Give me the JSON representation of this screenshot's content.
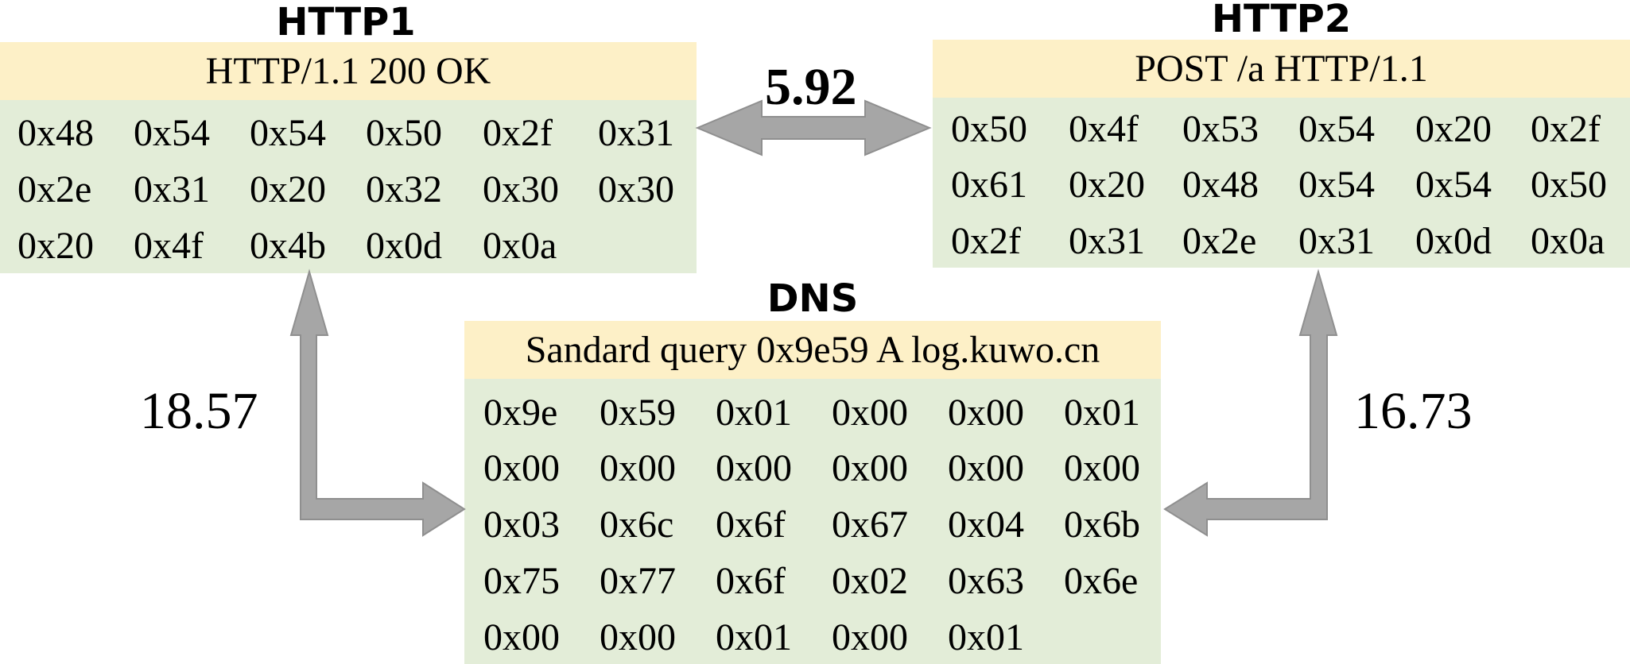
{
  "http1": {
    "title": "HTTP1",
    "header": "HTTP/1.1 200 OK",
    "bytes": [
      "0x48",
      "0x54",
      "0x54",
      "0x50",
      "0x2f",
      "0x31",
      "0x2e",
      "0x31",
      "0x20",
      "0x32",
      "0x30",
      "0x30",
      "0x20",
      "0x4f",
      "0x4b",
      "0x0d",
      "0x0a"
    ]
  },
  "http2": {
    "title": "HTTP2",
    "header": "POST /a HTTP/1.1",
    "bytes": [
      "0x50",
      "0x4f",
      "0x53",
      "0x54",
      "0x20",
      "0x2f",
      "0x61",
      "0x20",
      "0x48",
      "0x54",
      "0x54",
      "0x50",
      "0x2f",
      "0x31",
      "0x2e",
      "0x31",
      "0x0d",
      "0x0a"
    ]
  },
  "dns": {
    "title": "DNS",
    "header": "Sandard query 0x9e59 A log.kuwo.cn",
    "bytes": [
      "0x9e",
      "0x59",
      "0x01",
      "0x00",
      "0x00",
      "0x01",
      "0x00",
      "0x00",
      "0x00",
      "0x00",
      "0x00",
      "0x00",
      "0x03",
      "0x6c",
      "0x6f",
      "0x67",
      "0x04",
      "0x6b",
      "0x75",
      "0x77",
      "0x6f",
      "0x02",
      "0x63",
      "0x6e",
      "0x00",
      "0x00",
      "0x01",
      "0x00",
      "0x01"
    ]
  },
  "distances": {
    "http1_http2": "5.92",
    "http1_dns": "18.57",
    "http2_dns": "16.73"
  },
  "colors": {
    "header_bg": "#fdf0c7",
    "body_bg": "#e3edd8",
    "arrow": "#a6a6a6"
  }
}
